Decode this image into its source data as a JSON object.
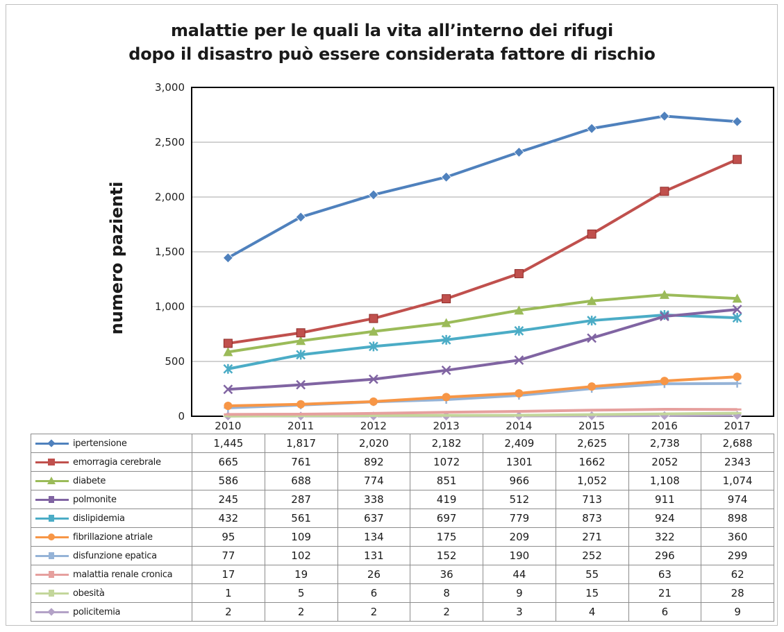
{
  "chart_data": {
    "type": "line",
    "title": [
      "malattie per le quali la vita all’interno dei rifugi",
      "dopo il disastro può essere considerata fattore di rischio"
    ],
    "xlabel": "",
    "ylabel": "numero pazienti",
    "ylim": [
      0,
      3000
    ],
    "yticks": [
      "0",
      "500",
      "1,000",
      "1,500",
      "2,000",
      "2,500",
      "3,000"
    ],
    "ytick_values": [
      0,
      500,
      1000,
      1500,
      2000,
      2500,
      3000
    ],
    "grid": true,
    "legend": "data-table",
    "categories": [
      "2010",
      "2011",
      "2012",
      "2013",
      "2014",
      "2015",
      "2016",
      "2017"
    ],
    "series": [
      {
        "name": "ipertensione",
        "color": "#4f81bd",
        "marker": "diamond",
        "values": [
          1445,
          1817,
          2020,
          2182,
          2409,
          2625,
          2738,
          2688
        ],
        "labels": [
          "1,445",
          "1,817",
          "2,020",
          "2,182",
          "2,409",
          "2,625",
          "2,738",
          "2,688"
        ]
      },
      {
        "name": "emorragia cerebrale",
        "color": "#c0504d",
        "marker": "square",
        "values": [
          665,
          761,
          892,
          1072,
          1301,
          1662,
          2052,
          2343
        ],
        "labels": [
          "665",
          "761",
          "892",
          "1072",
          "1301",
          "1662",
          "2052",
          "2343"
        ]
      },
      {
        "name": "diabete",
        "color": "#9bbb59",
        "marker": "triangle",
        "values": [
          586,
          688,
          774,
          851,
          966,
          1052,
          1108,
          1074
        ],
        "labels": [
          "586",
          "688",
          "774",
          "851",
          "966",
          "1,052",
          "1,108",
          "1,074"
        ]
      },
      {
        "name": "polmonite",
        "color": "#8064a2",
        "marker": "x",
        "values": [
          245,
          287,
          338,
          419,
          512,
          713,
          911,
          974
        ],
        "labels": [
          "245",
          "287",
          "338",
          "419",
          "512",
          "713",
          "911",
          "974"
        ]
      },
      {
        "name": "dislipidemia",
        "color": "#4bacc6",
        "marker": "star",
        "values": [
          432,
          561,
          637,
          697,
          779,
          873,
          924,
          898
        ],
        "labels": [
          "432",
          "561",
          "637",
          "697",
          "779",
          "873",
          "924",
          "898"
        ]
      },
      {
        "name": "fibrillazione atriale",
        "color": "#f79646",
        "marker": "circle",
        "values": [
          95,
          109,
          134,
          175,
          209,
          271,
          322,
          360
        ],
        "labels": [
          "95",
          "109",
          "134",
          "175",
          "209",
          "271",
          "322",
          "360"
        ]
      },
      {
        "name": "disfunzione epatica",
        "color": "#95b3d7",
        "marker": "plus",
        "values": [
          77,
          102,
          131,
          152,
          190,
          252,
          296,
          299
        ],
        "labels": [
          "77",
          "102",
          "131",
          "152",
          "190",
          "252",
          "296",
          "299"
        ]
      },
      {
        "name": "malattia renale cronica",
        "color": "#e6a09e",
        "marker": "dash",
        "values": [
          17,
          19,
          26,
          36,
          44,
          55,
          63,
          62
        ],
        "labels": [
          "17",
          "19",
          "26",
          "36",
          "44",
          "55",
          "63",
          "62"
        ]
      },
      {
        "name": "obesità",
        "color": "#c3d69b",
        "marker": "dash",
        "values": [
          1,
          5,
          6,
          8,
          9,
          15,
          21,
          28
        ],
        "labels": [
          "1",
          "5",
          "6",
          "8",
          "9",
          "15",
          "21",
          "28"
        ]
      },
      {
        "name": "policitemia",
        "color": "#b3a2c7",
        "marker": "diamond",
        "values": [
          2,
          2,
          2,
          2,
          3,
          4,
          6,
          9
        ],
        "labels": [
          "2",
          "2",
          "2",
          "2",
          "3",
          "4",
          "6",
          "9"
        ]
      }
    ]
  }
}
